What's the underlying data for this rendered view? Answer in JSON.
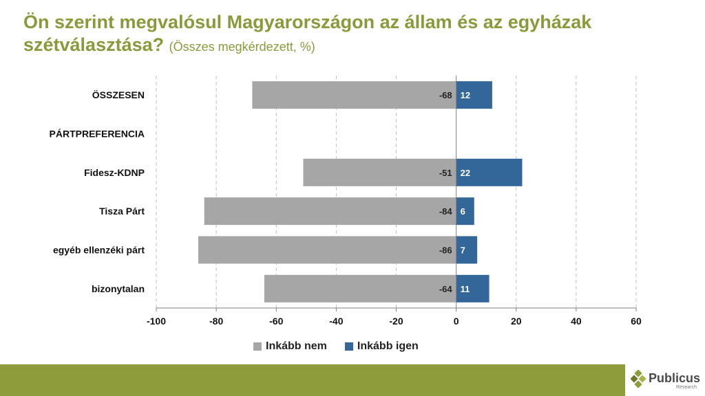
{
  "title": {
    "main": "Ön szerint megvalósul Magyarországon az állam és az egyházak szétválasztása?",
    "sub": "(Összes megkérdezett, %)"
  },
  "chart_data": {
    "type": "bar",
    "orientation": "horizontal",
    "stacked": "diverging",
    "categories": [
      "ÖSSZESEN",
      "PÁRTPREFERENCIA",
      "Fidesz-KDNP",
      "Tisza Párt",
      "egyéb ellenzéki párt",
      "bizonytalan"
    ],
    "series": [
      {
        "name": "Inkább nem",
        "color": "#a6a6a6",
        "values": [
          -68,
          null,
          -51,
          -84,
          -86,
          -64
        ]
      },
      {
        "name": "Inkább igen",
        "color": "#336699",
        "values": [
          12,
          null,
          22,
          6,
          7,
          11
        ]
      }
    ],
    "xlim": [
      -100,
      60
    ],
    "xticks": [
      -100,
      -80,
      -60,
      -40,
      -20,
      0,
      20,
      40,
      60
    ],
    "grid": "vertical dashed",
    "legend": "bottom"
  },
  "logo": {
    "name": "Publicus",
    "sub": "Research"
  },
  "colors": {
    "title": "#8a9a3a",
    "band": "#8e9c3c",
    "nem": "#a6a6a6",
    "igen": "#336699"
  }
}
